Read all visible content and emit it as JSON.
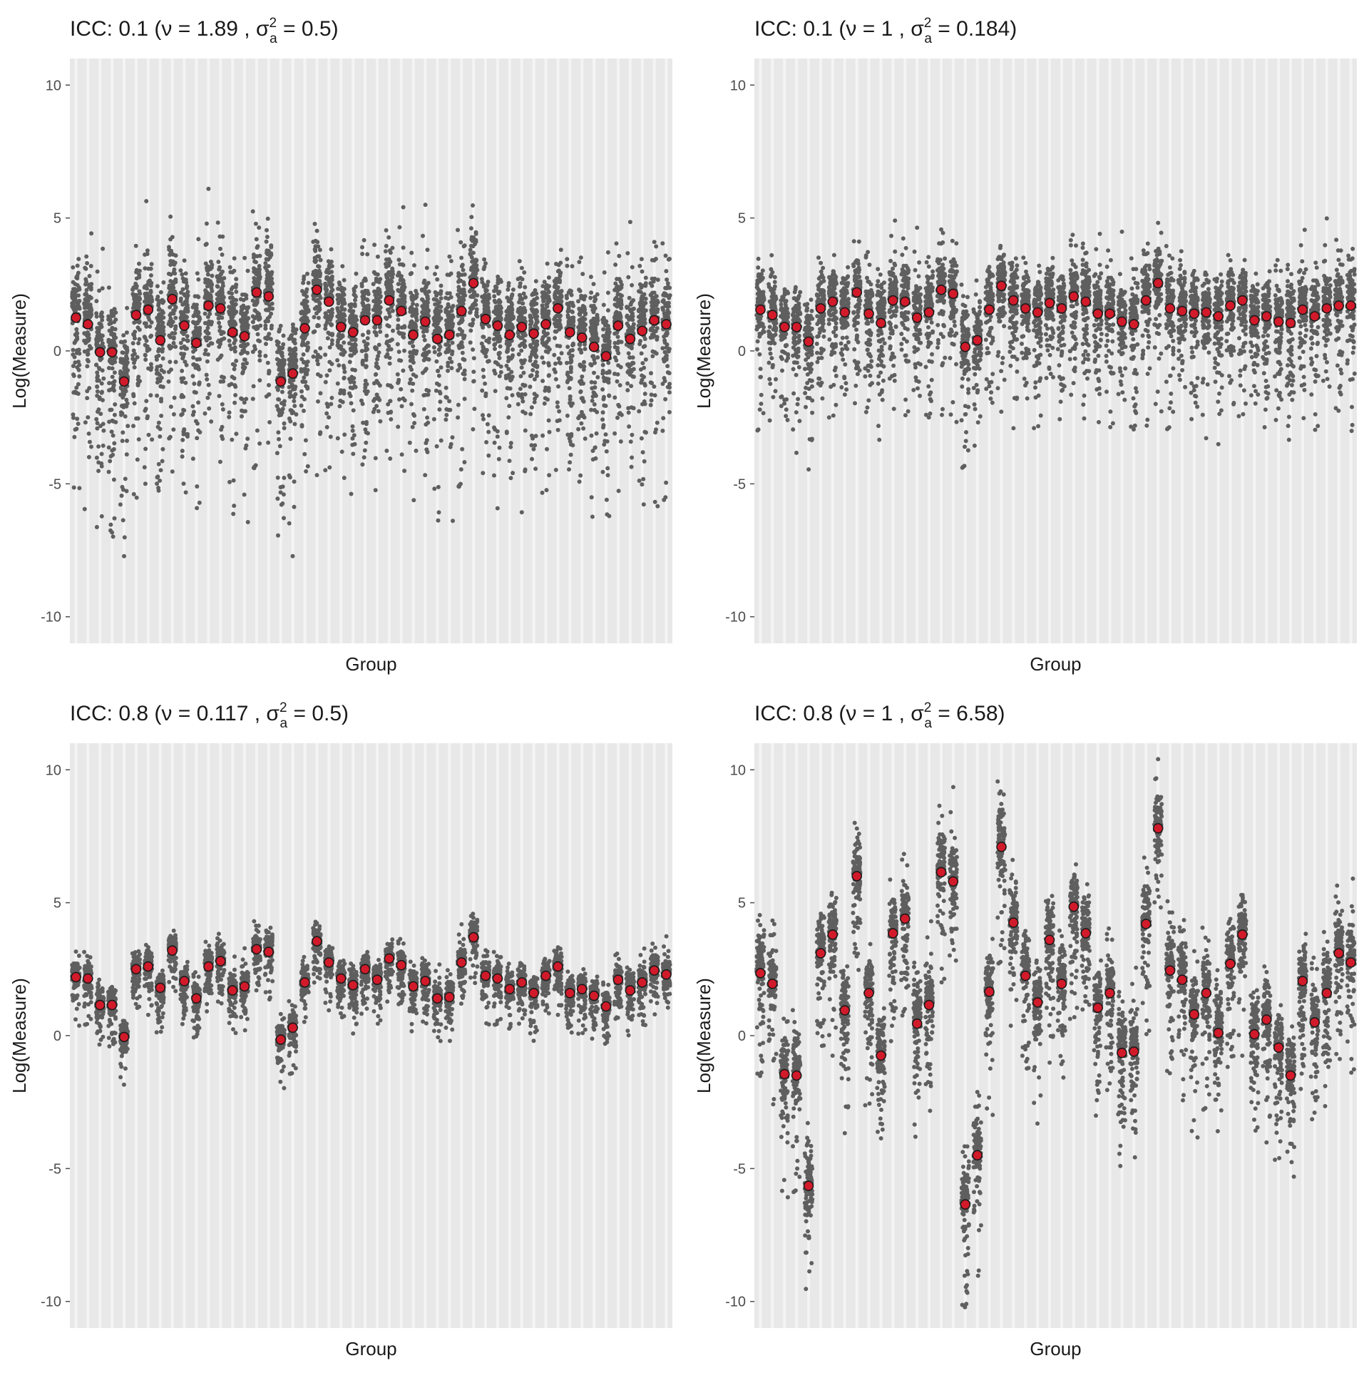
{
  "colors": {
    "panel_background": "#e8e8e8",
    "group_strip": "#f4f4f4",
    "point": "#5f5f5f",
    "mean_fill": "#d11a2a",
    "mean_stroke": "#1a1a1a",
    "text": "#1a1a1a",
    "tick_text": "#4d4d4d"
  },
  "chart_data": [
    {
      "type": "scatter",
      "title": {
        "prefix": "ICC: 0.1 ",
        "nu": "1.89",
        "sigma": "0.5"
      },
      "xlabel": "Group",
      "ylabel": "Log(Measure)",
      "ylim": [
        -11,
        11
      ],
      "yticks": [
        -10,
        -5,
        0,
        5,
        10
      ],
      "n_groups": 50,
      "grid": true,
      "spread": {
        "up": 2.6,
        "down": 3.6,
        "tail": 3.5
      },
      "group_means": [
        1.25,
        1.0,
        -0.05,
        -0.05,
        -1.15,
        1.35,
        1.55,
        0.4,
        1.95,
        0.95,
        0.3,
        1.7,
        1.6,
        0.7,
        0.55,
        2.2,
        2.05,
        -1.15,
        -0.85,
        0.85,
        2.3,
        1.85,
        0.9,
        0.7,
        1.15,
        1.15,
        1.9,
        1.5,
        0.6,
        1.1,
        0.45,
        0.6,
        1.5,
        2.55,
        1.2,
        0.95,
        0.6,
        0.9,
        0.65,
        1.0,
        1.6,
        0.7,
        0.5,
        0.15,
        -0.2,
        0.95,
        0.45,
        0.75,
        1.15,
        1.0
      ]
    },
    {
      "type": "scatter",
      "title": {
        "prefix": "ICC: 0.1 ",
        "nu": "1",
        "sigma": "0.184"
      },
      "xlabel": "Group",
      "ylabel": "Log(Measure)",
      "ylim": [
        -11,
        11
      ],
      "yticks": [
        -10,
        -5,
        0,
        5,
        10
      ],
      "n_groups": 50,
      "grid": true,
      "spread": {
        "up": 2.0,
        "down": 2.4,
        "tail": 2.5
      },
      "group_means": [
        1.55,
        1.35,
        0.9,
        0.9,
        0.35,
        1.6,
        1.85,
        1.45,
        2.2,
        1.4,
        1.05,
        1.9,
        1.85,
        1.25,
        1.45,
        2.3,
        2.15,
        0.15,
        0.4,
        1.55,
        2.45,
        1.9,
        1.6,
        1.45,
        1.8,
        1.6,
        2.05,
        1.85,
        1.4,
        1.4,
        1.1,
        1.0,
        1.9,
        2.55,
        1.6,
        1.5,
        1.4,
        1.45,
        1.3,
        1.7,
        1.9,
        1.15,
        1.3,
        1.1,
        1.05,
        1.55,
        1.3,
        1.6,
        1.7,
        1.7
      ]
    },
    {
      "type": "scatter",
      "title": {
        "prefix": "ICC: 0.8 ",
        "nu": "0.117",
        "sigma": "0.5"
      },
      "xlabel": "Group",
      "ylabel": "Log(Measure)",
      "ylim": [
        -11,
        11
      ],
      "yticks": [
        -10,
        -5,
        0,
        5,
        10
      ],
      "n_groups": 50,
      "grid": true,
      "spread": {
        "up": 0.85,
        "down": 1.05,
        "tail": 0.8
      },
      "group_means": [
        2.2,
        2.15,
        1.15,
        1.15,
        -0.05,
        2.5,
        2.6,
        1.8,
        3.2,
        2.05,
        1.4,
        2.6,
        2.8,
        1.7,
        1.85,
        3.25,
        3.15,
        -0.15,
        0.3,
        2.0,
        3.55,
        2.75,
        2.15,
        1.9,
        2.5,
        2.1,
        2.9,
        2.65,
        1.85,
        2.05,
        1.4,
        1.45,
        2.75,
        3.7,
        2.25,
        2.15,
        1.75,
        2.0,
        1.6,
        2.25,
        2.6,
        1.6,
        1.75,
        1.5,
        1.1,
        2.1,
        1.7,
        2.0,
        2.45,
        2.3
      ]
    },
    {
      "type": "scatter",
      "title": {
        "prefix": "ICC: 0.8 ",
        "nu": "1",
        "sigma": "6.58"
      },
      "xlabel": "Group",
      "ylabel": "Log(Measure)",
      "ylim": [
        -11,
        11
      ],
      "yticks": [
        -10,
        -5,
        0,
        5,
        10
      ],
      "n_groups": 50,
      "grid": true,
      "spread": {
        "up": 2.1,
        "down": 2.5,
        "tail": 2.2
      },
      "group_means": [
        2.35,
        1.95,
        -1.45,
        -1.5,
        -5.65,
        3.1,
        3.8,
        0.95,
        6.0,
        1.6,
        -0.75,
        3.85,
        4.4,
        0.45,
        1.15,
        6.15,
        5.8,
        -6.35,
        -4.5,
        1.65,
        7.1,
        4.25,
        2.25,
        1.25,
        3.6,
        1.95,
        4.85,
        3.85,
        1.05,
        1.6,
        -0.65,
        -0.6,
        4.2,
        7.8,
        2.45,
        2.1,
        0.8,
        1.6,
        0.1,
        2.7,
        3.8,
        0.05,
        0.6,
        -0.45,
        -1.5,
        2.05,
        0.5,
        1.6,
        3.1,
        2.75
      ]
    }
  ]
}
